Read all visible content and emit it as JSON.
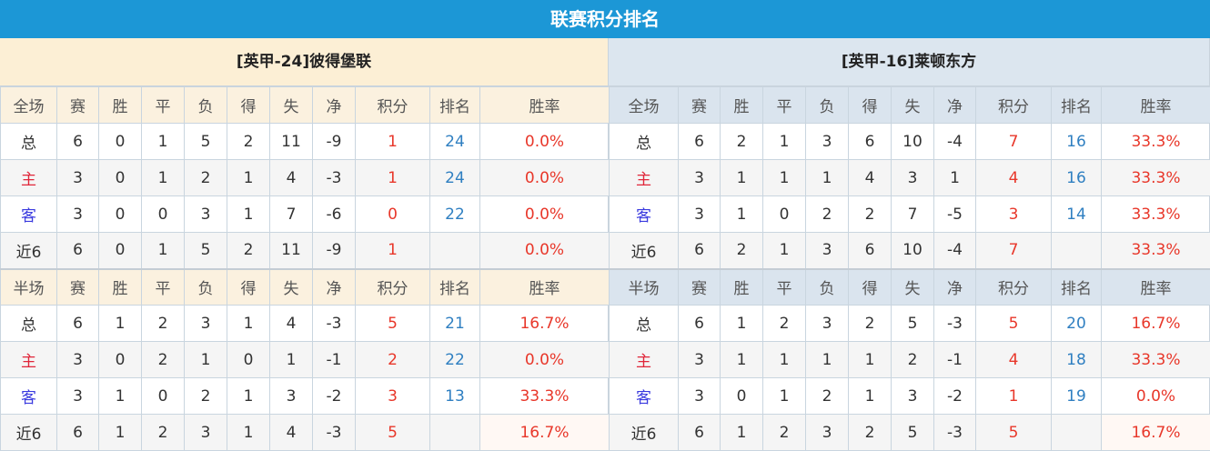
{
  "title": "联赛积分排名",
  "colors": {
    "header_bg": "#1c97d6",
    "points": "#e8372a",
    "rank": "#2f7fc1",
    "home_label": "#e0263a",
    "away_label": "#3a3adf"
  },
  "panels": [
    {
      "team": "[英甲-24]彼得堡联",
      "full": {
        "headers": [
          "全场",
          "赛",
          "胜",
          "平",
          "负",
          "得",
          "失",
          "净",
          "积分",
          "排名",
          "胜率"
        ],
        "rows": [
          [
            "总",
            "6",
            "0",
            "1",
            "5",
            "2",
            "11",
            "-9",
            "1",
            "24",
            "0.0%"
          ],
          [
            "主",
            "3",
            "0",
            "1",
            "2",
            "1",
            "4",
            "-3",
            "1",
            "24",
            "0.0%"
          ],
          [
            "客",
            "3",
            "0",
            "0",
            "3",
            "1",
            "7",
            "-6",
            "0",
            "22",
            "0.0%"
          ],
          [
            "近6",
            "6",
            "0",
            "1",
            "5",
            "2",
            "11",
            "-9",
            "1",
            "",
            "0.0%"
          ]
        ]
      },
      "half": {
        "headers": [
          "半场",
          "赛",
          "胜",
          "平",
          "负",
          "得",
          "失",
          "净",
          "积分",
          "排名",
          "胜率"
        ],
        "rows": [
          [
            "总",
            "6",
            "1",
            "2",
            "3",
            "1",
            "4",
            "-3",
            "5",
            "21",
            "16.7%"
          ],
          [
            "主",
            "3",
            "0",
            "2",
            "1",
            "0",
            "1",
            "-1",
            "2",
            "22",
            "0.0%"
          ],
          [
            "客",
            "3",
            "1",
            "0",
            "2",
            "1",
            "3",
            "-2",
            "3",
            "13",
            "33.3%"
          ],
          [
            "近6",
            "6",
            "1",
            "2",
            "3",
            "1",
            "4",
            "-3",
            "5",
            "",
            "16.7%"
          ]
        ]
      }
    },
    {
      "team": "[英甲-16]莱顿东方",
      "full": {
        "headers": [
          "全场",
          "赛",
          "胜",
          "平",
          "负",
          "得",
          "失",
          "净",
          "积分",
          "排名",
          "胜率"
        ],
        "rows": [
          [
            "总",
            "6",
            "2",
            "1",
            "3",
            "6",
            "10",
            "-4",
            "7",
            "16",
            "33.3%"
          ],
          [
            "主",
            "3",
            "1",
            "1",
            "1",
            "4",
            "3",
            "1",
            "4",
            "16",
            "33.3%"
          ],
          [
            "客",
            "3",
            "1",
            "0",
            "2",
            "2",
            "7",
            "-5",
            "3",
            "14",
            "33.3%"
          ],
          [
            "近6",
            "6",
            "2",
            "1",
            "3",
            "6",
            "10",
            "-4",
            "7",
            "",
            "33.3%"
          ]
        ]
      },
      "half": {
        "headers": [
          "半场",
          "赛",
          "胜",
          "平",
          "负",
          "得",
          "失",
          "净",
          "积分",
          "排名",
          "胜率"
        ],
        "rows": [
          [
            "总",
            "6",
            "1",
            "2",
            "3",
            "2",
            "5",
            "-3",
            "5",
            "20",
            "16.7%"
          ],
          [
            "主",
            "3",
            "1",
            "1",
            "1",
            "1",
            "2",
            "-1",
            "4",
            "18",
            "33.3%"
          ],
          [
            "客",
            "3",
            "0",
            "1",
            "2",
            "1",
            "3",
            "-2",
            "1",
            "19",
            "0.0%"
          ],
          [
            "近6",
            "6",
            "1",
            "2",
            "3",
            "2",
            "5",
            "-3",
            "5",
            "",
            "16.7%"
          ]
        ]
      }
    }
  ]
}
